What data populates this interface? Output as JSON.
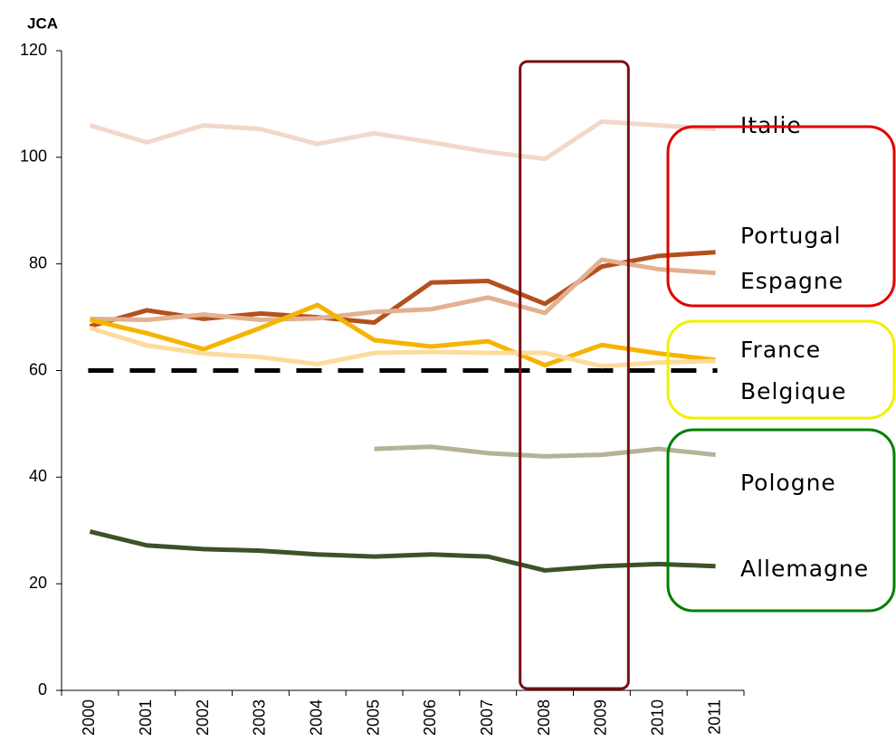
{
  "chart_data": {
    "type": "line",
    "title": "JCA",
    "categories": [
      "2000",
      "2001",
      "2002",
      "2003",
      "2004",
      "2005",
      "2006",
      "2007",
      "2008",
      "2009",
      "2010",
      "2011"
    ],
    "ylim": [
      0,
      120
    ],
    "yticks": [
      0,
      20,
      40,
      60,
      80,
      100,
      120
    ],
    "reference_line": 60,
    "series": [
      {
        "name": "Italie",
        "color": "#f2d8ca",
        "values": [
          106,
          102.8,
          106,
          105.3,
          102.5,
          104.5,
          102.8,
          101,
          99.7,
          106.7,
          106,
          105.3
        ]
      },
      {
        "name": "Portugal",
        "color": "#b5501e",
        "values": [
          68.3,
          71.3,
          69.7,
          70.7,
          70,
          69,
          76.5,
          76.8,
          72.5,
          79.5,
          81.5,
          82.2
        ]
      },
      {
        "name": "Espagne",
        "color": "#e2b192",
        "values": [
          69.7,
          69.5,
          70.5,
          69.5,
          69.8,
          71,
          71.5,
          73.7,
          70.8,
          80.8,
          79,
          78.3
        ]
      },
      {
        "name": "France",
        "color": "#f5b400",
        "values": [
          69.5,
          67,
          64,
          68,
          72.3,
          65.7,
          64.5,
          65.5,
          61,
          64.8,
          63.2,
          62
        ]
      },
      {
        "name": "Belgique",
        "color": "#fcdb9c",
        "values": [
          68,
          64.7,
          63.2,
          62.5,
          61.2,
          63.3,
          63.5,
          63.3,
          63.3,
          60.8,
          61.5,
          61.8
        ]
      },
      {
        "name": "Pologne",
        "color": "#b5b298",
        "values": [
          null,
          null,
          null,
          null,
          null,
          45.3,
          45.7,
          44.5,
          43.9,
          44.2,
          45.3,
          44.2
        ]
      },
      {
        "name": "Allemagne",
        "color": "#3d5228",
        "values": [
          29.8,
          27.2,
          26.5,
          26.2,
          25.5,
          25.1,
          25.5,
          25.1,
          22.5,
          23.3,
          23.7,
          23.3
        ]
      }
    ]
  }
}
